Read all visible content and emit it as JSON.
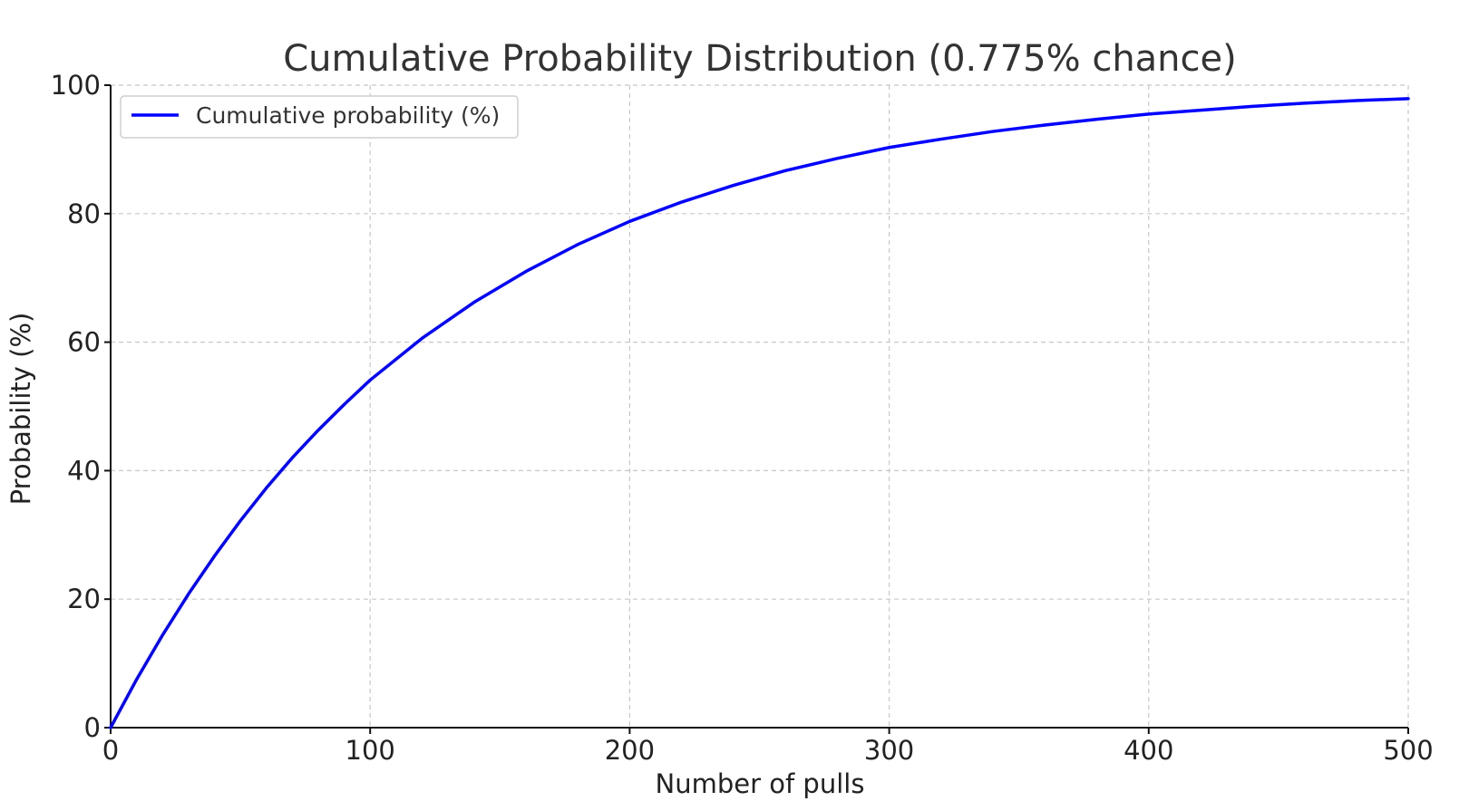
{
  "chart_data": {
    "type": "line",
    "title": "Cumulative Probability Distribution (0.775% chance)",
    "xlabel": "Number of pulls",
    "ylabel": "Probability (%)",
    "xlim": [
      0,
      500
    ],
    "ylim": [
      0,
      100
    ],
    "x_ticks": [
      "0",
      "100",
      "200",
      "300",
      "400",
      "500"
    ],
    "y_ticks": [
      "0",
      "20",
      "40",
      "60",
      "80",
      "100"
    ],
    "grid": true,
    "legend_position": "top-left",
    "series": [
      {
        "name": "Cumulative probability (%)",
        "color": "#0000ff",
        "x": [
          0,
          10,
          20,
          30,
          40,
          50,
          60,
          70,
          80,
          90,
          100,
          120,
          140,
          160,
          180,
          200,
          220,
          240,
          260,
          280,
          300,
          320,
          340,
          360,
          380,
          400,
          420,
          440,
          460,
          480,
          500
        ],
        "y": [
          0,
          7.5,
          14.4,
          20.8,
          26.7,
          32.2,
          37.3,
          42.0,
          46.3,
          50.3,
          54.1,
          60.6,
          66.2,
          71.0,
          75.2,
          78.8,
          81.8,
          84.4,
          86.7,
          88.6,
          90.3,
          91.6,
          92.8,
          93.8,
          94.7,
          95.5,
          96.1,
          96.7,
          97.2,
          97.6,
          97.9
        ]
      }
    ]
  }
}
